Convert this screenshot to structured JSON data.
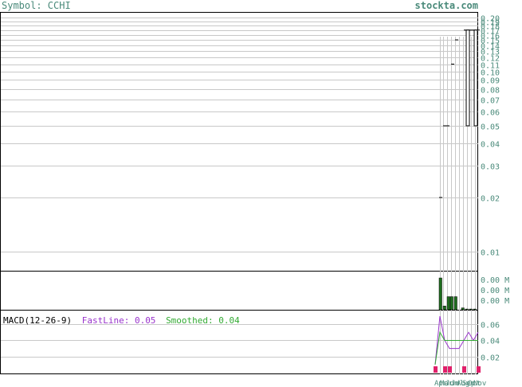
{
  "header": {
    "symbol_label": "Symbol: CCHI",
    "site": "stockta.com"
  },
  "price_axis": {
    "ticks": [
      "0.20",
      "0.19",
      "0.18",
      "0.17",
      "0.16",
      "0.15",
      "0.14",
      "0.13",
      "0.12",
      "0.11",
      "0.10",
      "0.09",
      "0.08",
      "0.07",
      "0.06",
      "0.05",
      "0.04",
      "0.03",
      "0.02",
      "0.01"
    ],
    "scale": "log"
  },
  "volume_axis": {
    "ticks": [
      "0.00 M",
      "0.00 M",
      "0.00 M"
    ]
  },
  "macd_axis": {
    "ticks": [
      "0.06",
      "0.04",
      "0.02"
    ]
  },
  "macd_legend": {
    "title": "MACD(12-26-9)",
    "fast_label": "FastLine: 0.05",
    "smooth_label": "Smoothed: 0.04"
  },
  "x_labels": [
    "Apr",
    "Mar",
    "Jun",
    "Jul",
    "Aug",
    "Sep",
    "Oct",
    "Nov"
  ],
  "colors": {
    "grid": "#c8c8c8",
    "axis_text": "#4a8a7a",
    "volume": "#1f6e1f",
    "macd_fast": "#9933cc",
    "macd_smooth": "#33aa33",
    "hist": "#e0206a",
    "legend_title": "#000000",
    "legend_fast": "#9933cc",
    "legend_smooth": "#33aa33"
  },
  "chart_data": [
    {
      "type": "candlestick",
      "ylim": [
        0.008,
        0.21
      ],
      "scale": "log",
      "candles": [
        {
          "open": 0.02,
          "high": 0.02,
          "low": 0.02,
          "close": 0.02
        },
        {
          "open": 0.05,
          "high": 0.05,
          "low": 0.05,
          "close": 0.05
        },
        {
          "open": 0.05,
          "high": 0.05,
          "low": 0.05,
          "close": 0.05
        },
        {
          "open": 0.11,
          "high": 0.11,
          "low": 0.11,
          "close": 0.11
        },
        {
          "open": 0.15,
          "high": 0.15,
          "low": 0.15,
          "close": 0.15
        },
        {
          "open": 0.05,
          "high": 0.17,
          "low": 0.05,
          "close": 0.17
        },
        {
          "open": 0.05,
          "high": 0.17,
          "low": 0.05,
          "close": 0.17
        }
      ]
    },
    {
      "type": "bar",
      "name": "volume",
      "values": [
        0.0,
        0.85,
        0.1,
        0.35,
        0.35,
        0.35,
        0.0,
        0.05,
        0.02,
        0.02,
        0.02
      ]
    },
    {
      "type": "line",
      "name": "MACD",
      "series": [
        {
          "name": "FastLine",
          "values": [
            0.01,
            0.07,
            0.04,
            0.03,
            0.03,
            0.03,
            0.04,
            0.05,
            0.04,
            0.05
          ]
        },
        {
          "name": "Smoothed",
          "values": [
            0.01,
            0.05,
            0.04,
            0.04,
            0.04,
            0.04,
            0.04,
            0.04,
            0.04,
            0.04
          ]
        }
      ],
      "histogram": [
        0.005,
        0.0,
        0.005,
        0.005,
        0.0,
        0.0,
        0.005,
        0.0,
        0.0,
        0.005
      ],
      "ylim": [
        0.0,
        0.075
      ]
    }
  ]
}
